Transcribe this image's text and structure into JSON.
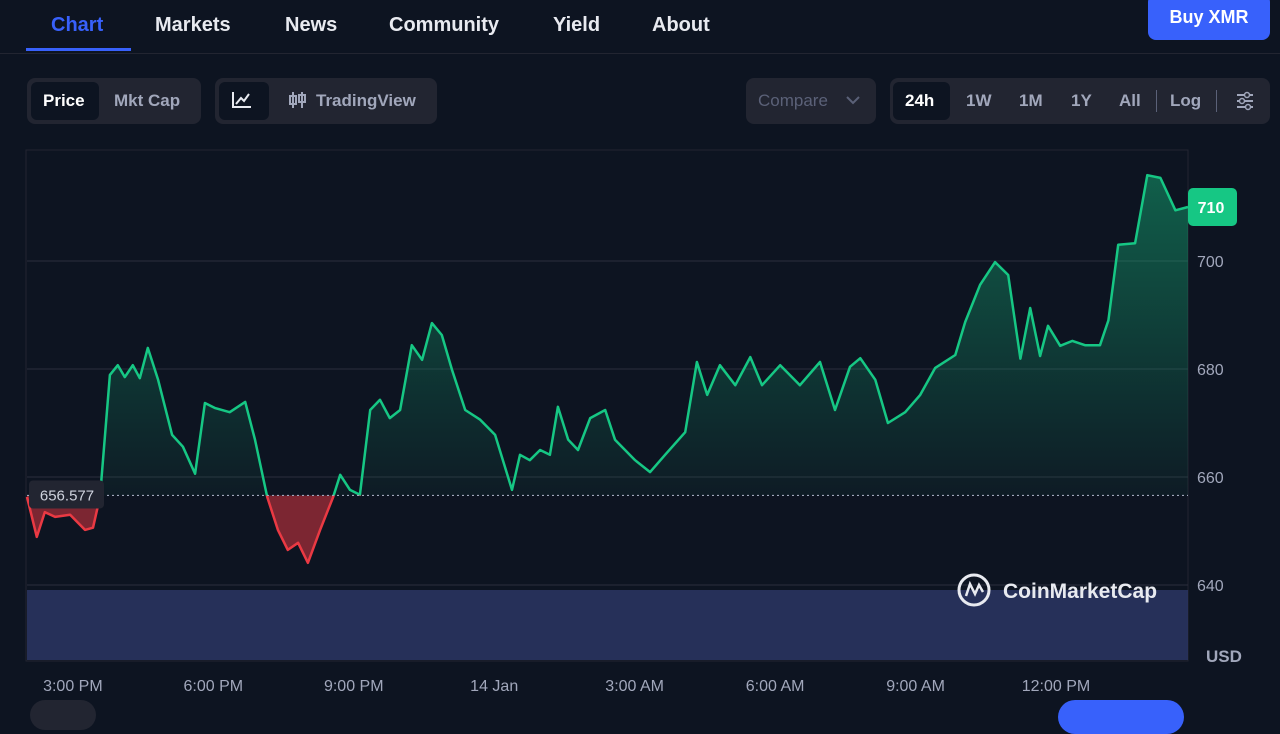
{
  "nav": {
    "tabs": [
      "Chart",
      "Markets",
      "News",
      "Community",
      "Yield",
      "About"
    ],
    "action": "Buy XMR"
  },
  "toolbar": {
    "view": [
      "Price",
      "Mkt Cap"
    ],
    "chart_mode": "TradingView",
    "compare": "Compare",
    "ranges": [
      "24h",
      "1W",
      "1M",
      "1Y",
      "All"
    ],
    "scale": "Log"
  },
  "chart_data": {
    "type": "line",
    "x": [
      -0.98,
      -0.77,
      -0.6,
      -0.38,
      -0.06,
      0.26,
      0.43,
      0.58,
      0.79,
      0.96,
      1.11,
      1.28,
      1.43,
      1.6,
      1.82,
      2.12,
      2.35,
      2.61,
      2.82,
      3.03,
      3.35,
      3.68,
      3.89,
      4.15,
      4.38,
      4.59,
      4.81,
      5.02,
      5.28,
      5.56,
      5.71,
      5.92,
      6.13,
      6.35,
      6.56,
      6.77,
      6.99,
      7.24,
      7.46,
      7.67,
      7.88,
      8.1,
      8.38,
      8.7,
      9.02,
      9.38,
      9.55,
      9.76,
      9.98,
      10.19,
      10.36,
      10.58,
      10.79,
      11.05,
      11.37,
      11.58,
      12.01,
      12.33,
      12.65,
      13.08,
      13.33,
      13.55,
      13.82,
      14.15,
      14.47,
      14.72,
      15.11,
      15.53,
      15.96,
      16.28,
      16.6,
      16.82,
      17.14,
      17.41,
      17.78,
      18.1,
      18.42,
      18.85,
      19.06,
      19.38,
      19.7,
      19.98,
      20.24,
      20.45,
      20.66,
      20.83,
      21.09,
      21.35,
      21.62,
      21.94,
      22.12,
      22.33,
      22.69,
      22.95,
      23.23,
      23.55,
      23.82
    ],
    "series": [
      {
        "color": "#16c784",
        "below_color": "#ea3943",
        "values": [
          656.3,
          648.9,
          653.5,
          652.6,
          653,
          650.2,
          650.6,
          656.3,
          678.9,
          680.7,
          678.5,
          680.7,
          678.3,
          683.9,
          678,
          667.8,
          665.6,
          660.6,
          673.7,
          672.8,
          672,
          673.9,
          666.9,
          656.3,
          650.2,
          646.5,
          647.8,
          644.1,
          650.2,
          656.3,
          660.4,
          657.6,
          656.7,
          672.4,
          674.3,
          670.9,
          672.4,
          684.4,
          681.7,
          688.5,
          686.3,
          679.8,
          672.4,
          670.6,
          667.8,
          657.6,
          664.1,
          663.1,
          665,
          664.1,
          673,
          666.9,
          665,
          670.9,
          672.4,
          666.9,
          663.1,
          660.9,
          664.1,
          668.3,
          681.3,
          675.2,
          680.7,
          677,
          682.2,
          677,
          680.7,
          677,
          681.3,
          672.4,
          680.4,
          682,
          678,
          670,
          672,
          675.2,
          680.2,
          682.6,
          688.7,
          695.6,
          699.8,
          697.4,
          681.9,
          691.3,
          682.4,
          688,
          684.3,
          685.2,
          684.4,
          684.4,
          689,
          703,
          703.3,
          715.9,
          715.4,
          709.4,
          710
        ]
      }
    ],
    "baseline": 656.577,
    "current_price": 710,
    "unit": "USD",
    "watermark": "CoinMarketCap",
    "xlim": [
      -0.98,
      23.82
    ],
    "xticks": [
      {
        "value": 0,
        "label": "3:00 PM"
      },
      {
        "value": 3,
        "label": "6:00 PM"
      },
      {
        "value": 6,
        "label": "9:00 PM"
      },
      {
        "value": 9,
        "label": "14 Jan"
      },
      {
        "value": 12,
        "label": "3:00 AM"
      },
      {
        "value": 15,
        "label": "6:00 AM"
      },
      {
        "value": 18,
        "label": "9:00 AM"
      },
      {
        "value": 21,
        "label": "12:00 PM"
      }
    ],
    "ylim": [
      626.1,
      720.56
    ],
    "yticks": [
      640,
      660,
      680,
      700
    ],
    "grid": true
  }
}
